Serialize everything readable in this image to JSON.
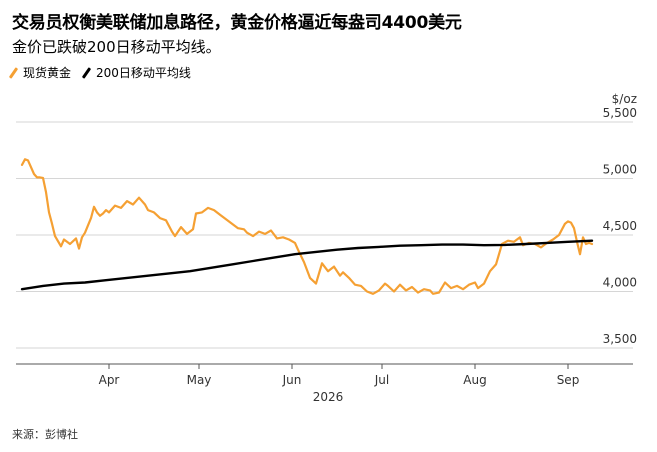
{
  "title": "交易员权衡美联储加息路径，黄金价格逼近每盎司4400美元",
  "subtitle": "金价已跌破200日移动平均线。",
  "legend": [
    {
      "label": "现货黄金",
      "color": "#f5a033"
    },
    {
      "label": "200日移动平均线",
      "color": "#000000"
    }
  ],
  "source": "来源：彭博社",
  "chart_data": {
    "type": "line",
    "title": "交易员权衡美联储加息路径，黄金价格逼近每盎司4400美元",
    "subtitle": "金价已跌破200日移动平均线。",
    "y_unit": "$/oz",
    "ylim": [
      3500,
      5500
    ],
    "y_ticks": [
      3500,
      4000,
      4500,
      5000,
      5500
    ],
    "y_tick_labels": [
      "3,500",
      "4,000",
      "4,500",
      "5,000",
      "5,500"
    ],
    "x_range": [
      "2026-03-03",
      "2026-09-10"
    ],
    "x_ticks": [
      {
        "date": "2026-04-01",
        "label": "Apr"
      },
      {
        "date": "2026-05-01",
        "label": "May"
      },
      {
        "date": "2026-06-01",
        "label": "Jun"
      },
      {
        "date": "2026-07-01",
        "label": "Jul"
      },
      {
        "date": "2026-08-01",
        "label": "Aug"
      },
      {
        "date": "2026-09-01",
        "label": "Sep"
      }
    ],
    "year_label": "2026",
    "grid": true,
    "legend_position": "top-left",
    "series": [
      {
        "name": "现货黄金",
        "color": "#f5a033",
        "x": [
          "2026-03-03",
          "2026-03-04",
          "2026-03-05",
          "2026-03-06",
          "2026-03-07",
          "2026-03-08",
          "2026-03-09",
          "2026-03-10",
          "2026-03-11",
          "2026-03-12",
          "2026-03-13",
          "2026-03-14",
          "2026-03-16",
          "2026-03-17",
          "2026-03-19",
          "2026-03-21",
          "2026-03-22",
          "2026-03-23",
          "2026-03-24",
          "2026-03-26",
          "2026-03-27",
          "2026-03-28",
          "2026-03-29",
          "2026-03-30",
          "2026-03-31",
          "2026-04-01",
          "2026-04-03",
          "2026-04-05",
          "2026-04-07",
          "2026-04-09",
          "2026-04-11",
          "2026-04-13",
          "2026-04-14",
          "2026-04-16",
          "2026-04-18",
          "2026-04-20",
          "2026-04-22",
          "2026-04-23",
          "2026-04-25",
          "2026-04-27",
          "2026-04-29",
          "2026-04-30",
          "2026-05-02",
          "2026-05-04",
          "2026-05-06",
          "2026-05-08",
          "2026-05-10",
          "2026-05-12",
          "2026-05-14",
          "2026-05-16",
          "2026-05-17",
          "2026-05-19",
          "2026-05-21",
          "2026-05-23",
          "2026-05-25",
          "2026-05-27",
          "2026-05-29",
          "2026-05-31",
          "2026-06-02",
          "2026-06-03",
          "2026-06-05",
          "2026-06-07",
          "2026-06-09",
          "2026-06-11",
          "2026-06-13",
          "2026-06-15",
          "2026-06-17",
          "2026-06-18",
          "2026-06-20",
          "2026-06-22",
          "2026-06-24",
          "2026-06-26",
          "2026-06-28",
          "2026-06-30",
          "2026-07-02",
          "2026-07-03",
          "2026-07-05",
          "2026-07-07",
          "2026-07-09",
          "2026-07-11",
          "2026-07-13",
          "2026-07-15",
          "2026-07-17",
          "2026-07-18",
          "2026-07-20",
          "2026-07-22",
          "2026-07-24",
          "2026-07-26",
          "2026-07-28",
          "2026-07-30",
          "2026-08-01",
          "2026-08-02",
          "2026-08-04",
          "2026-08-06",
          "2026-08-08",
          "2026-08-10",
          "2026-08-12",
          "2026-08-14",
          "2026-08-16",
          "2026-08-17",
          "2026-08-19",
          "2026-08-21",
          "2026-08-23",
          "2026-08-25",
          "2026-08-27",
          "2026-08-29",
          "2026-08-31",
          "2026-09-01",
          "2026-09-02",
          "2026-09-03",
          "2026-09-04",
          "2026-09-05",
          "2026-09-06",
          "2026-09-07",
          "2026-09-08",
          "2026-09-09"
        ],
        "y": [
          5120,
          5170,
          5160,
          5100,
          5040,
          5010,
          5010,
          5005,
          4880,
          4700,
          4600,
          4490,
          4400,
          4460,
          4420,
          4470,
          4380,
          4480,
          4520,
          4650,
          4750,
          4700,
          4670,
          4690,
          4720,
          4700,
          4760,
          4740,
          4800,
          4770,
          4830,
          4770,
          4720,
          4700,
          4650,
          4630,
          4530,
          4490,
          4570,
          4510,
          4550,
          4690,
          4700,
          4740,
          4720,
          4680,
          4640,
          4600,
          4560,
          4550,
          4520,
          4490,
          4530,
          4510,
          4540,
          4470,
          4480,
          4460,
          4430,
          4370,
          4260,
          4120,
          4070,
          4250,
          4180,
          4220,
          4140,
          4170,
          4120,
          4060,
          4050,
          4000,
          3980,
          4010,
          4070,
          4050,
          4000,
          4060,
          4010,
          4040,
          3990,
          4020,
          4010,
          3980,
          3990,
          4080,
          4030,
          4050,
          4020,
          4060,
          4080,
          4030,
          4070,
          4180,
          4240,
          4420,
          4450,
          4440,
          4480,
          4410,
          4430,
          4420,
          4390,
          4430,
          4460,
          4500,
          4600,
          4620,
          4610,
          4560,
          4440,
          4330,
          4480,
          4420,
          4430,
          4420
        ]
      },
      {
        "name": "200日移动平均线",
        "color": "#000000",
        "x": [
          "2026-03-03",
          "2026-03-10",
          "2026-03-17",
          "2026-03-24",
          "2026-03-31",
          "2026-04-07",
          "2026-04-14",
          "2026-04-21",
          "2026-04-28",
          "2026-05-05",
          "2026-05-12",
          "2026-05-19",
          "2026-05-26",
          "2026-06-02",
          "2026-06-09",
          "2026-06-16",
          "2026-06-23",
          "2026-06-30",
          "2026-07-07",
          "2026-07-14",
          "2026-07-21",
          "2026-07-28",
          "2026-08-04",
          "2026-08-11",
          "2026-08-18",
          "2026-08-25",
          "2026-09-01",
          "2026-09-09"
        ],
        "y": [
          4020,
          4050,
          4070,
          4080,
          4100,
          4120,
          4140,
          4160,
          4180,
          4210,
          4240,
          4270,
          4300,
          4330,
          4350,
          4370,
          4385,
          4395,
          4405,
          4410,
          4415,
          4415,
          4410,
          4412,
          4420,
          4430,
          4440,
          4450
        ]
      }
    ]
  }
}
